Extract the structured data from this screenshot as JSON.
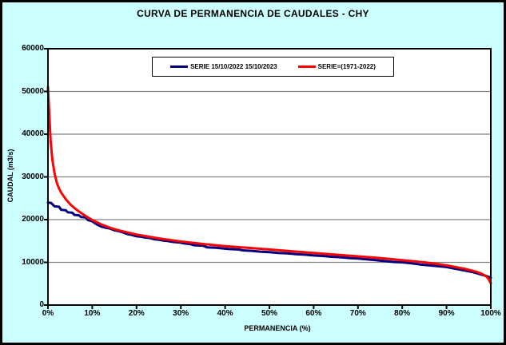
{
  "chart_data": {
    "type": "line",
    "title": "CURVA DE PERMANENCIA DE CAUDALES - CHY",
    "xlabel": "PERMANENCIA (%)",
    "ylabel": "CAUDAL (m3/s)",
    "xlim": [
      0,
      100
    ],
    "ylim": [
      0,
      60000
    ],
    "xticks": [
      "0%",
      "10%",
      "20%",
      "30%",
      "40%",
      "50%",
      "60%",
      "70%",
      "80%",
      "90%",
      "100%"
    ],
    "yticks": [
      0,
      10000,
      20000,
      30000,
      40000,
      50000,
      60000
    ],
    "grid": "horizontal",
    "legend_position": "top-center",
    "series": [
      {
        "name": "SERIE 15/10/2022 15/10/2023",
        "color": "#000080",
        "points": [
          [
            0,
            24000
          ],
          [
            0.7,
            23900
          ],
          [
            1,
            23600
          ],
          [
            1.5,
            23100
          ],
          [
            2.5,
            23000
          ],
          [
            3,
            22300
          ],
          [
            4,
            22200
          ],
          [
            4.5,
            21700
          ],
          [
            5.5,
            21600
          ],
          [
            6,
            21100
          ],
          [
            7,
            21000
          ],
          [
            7.5,
            20600
          ],
          [
            8.5,
            20500
          ],
          [
            9,
            19900
          ],
          [
            10,
            19600
          ],
          [
            11,
            18900
          ],
          [
            12,
            18400
          ],
          [
            13,
            18100
          ],
          [
            14,
            17900
          ],
          [
            15,
            17500
          ],
          [
            16,
            17300
          ],
          [
            17,
            17000
          ],
          [
            18,
            16600
          ],
          [
            19,
            16400
          ],
          [
            20,
            16100
          ],
          [
            21,
            16000
          ],
          [
            22,
            15800
          ],
          [
            23,
            15700
          ],
          [
            24,
            15400
          ],
          [
            25,
            15300
          ],
          [
            26,
            15100
          ],
          [
            27,
            15000
          ],
          [
            28,
            14800
          ],
          [
            30,
            14600
          ],
          [
            31,
            14400
          ],
          [
            32,
            14300
          ],
          [
            33,
            14000
          ],
          [
            35,
            13900
          ],
          [
            36,
            13500
          ],
          [
            38,
            13400
          ],
          [
            40,
            13200
          ],
          [
            41,
            13100
          ],
          [
            43,
            13000
          ],
          [
            44,
            12800
          ],
          [
            46,
            12700
          ],
          [
            48,
            12500
          ],
          [
            50,
            12400
          ],
          [
            52,
            12200
          ],
          [
            54,
            12100
          ],
          [
            56,
            11900
          ],
          [
            58,
            11800
          ],
          [
            60,
            11600
          ],
          [
            62,
            11500
          ],
          [
            64,
            11300
          ],
          [
            66,
            11200
          ],
          [
            68,
            11000
          ],
          [
            70,
            10900
          ],
          [
            72,
            10700
          ],
          [
            74,
            10500
          ],
          [
            76,
            10300
          ],
          [
            78,
            10100
          ],
          [
            80,
            10000
          ],
          [
            82,
            9800
          ],
          [
            84,
            9500
          ],
          [
            86,
            9300
          ],
          [
            88,
            9100
          ],
          [
            90,
            8900
          ],
          [
            92,
            8500
          ],
          [
            94,
            8100
          ],
          [
            96,
            7700
          ],
          [
            97,
            7400
          ],
          [
            98,
            7100
          ],
          [
            99,
            6800
          ],
          [
            100,
            6400
          ]
        ]
      },
      {
        "name": "SERIE=(1971-2022)",
        "color": "#FF0000",
        "points": [
          [
            0,
            51000
          ],
          [
            0.3,
            44500
          ],
          [
            0.6,
            38500
          ],
          [
            1,
            34000
          ],
          [
            1.5,
            30800
          ],
          [
            2,
            28600
          ],
          [
            2.5,
            27300
          ],
          [
            3,
            26300
          ],
          [
            4,
            24800
          ],
          [
            5,
            23600
          ],
          [
            6,
            22700
          ],
          [
            7,
            21900
          ],
          [
            8,
            21200
          ],
          [
            9,
            20500
          ],
          [
            10,
            19900
          ],
          [
            12,
            18900
          ],
          [
            14,
            18100
          ],
          [
            16,
            17500
          ],
          [
            18,
            17000
          ],
          [
            20,
            16500
          ],
          [
            25,
            15600
          ],
          [
            30,
            14900
          ],
          [
            35,
            14300
          ],
          [
            40,
            13800
          ],
          [
            45,
            13400
          ],
          [
            50,
            13000
          ],
          [
            55,
            12600
          ],
          [
            60,
            12200
          ],
          [
            65,
            11800
          ],
          [
            70,
            11400
          ],
          [
            75,
            11000
          ],
          [
            80,
            10500
          ],
          [
            85,
            10000
          ],
          [
            88,
            9600
          ],
          [
            90,
            9300
          ],
          [
            92,
            8900
          ],
          [
            94,
            8500
          ],
          [
            96,
            8000
          ],
          [
            97,
            7700
          ],
          [
            98,
            7300
          ],
          [
            99,
            6700
          ],
          [
            99.5,
            6100
          ],
          [
            100,
            5100
          ]
        ]
      }
    ]
  },
  "colors": {
    "background": "#CCFFFF",
    "plot_background": "#FFFFFF",
    "grid": "#808080",
    "border": "#000000"
  }
}
